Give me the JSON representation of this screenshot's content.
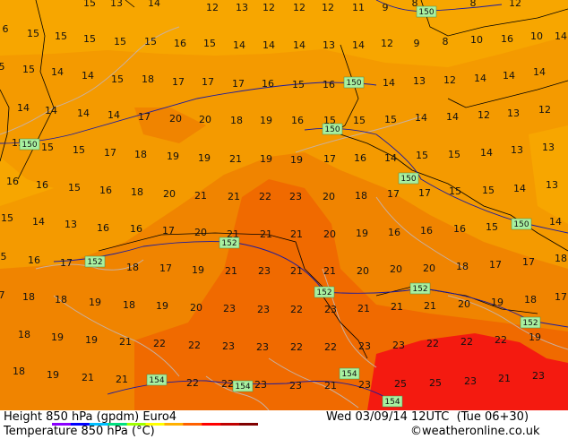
{
  "map": {
    "colors": {
      "t10_14": "#f7a600",
      "t14_18": "#f49a00",
      "t18_22": "#f08400",
      "t22_26": "#f06a00",
      "t26_30": "#f41a10",
      "contour_label_bg": "#a8f0a0",
      "coast": "#c8b0a0",
      "border": "#000000",
      "contour": "#1a1aa0"
    },
    "temperature_values": [
      [
        "13",
        130,
        3
      ],
      [
        "12",
        237,
        8
      ],
      [
        "13",
        270,
        8
      ],
      [
        "12",
        300,
        8
      ],
      [
        "12",
        334,
        8
      ],
      [
        "12",
        366,
        8
      ],
      [
        "11",
        400,
        8
      ],
      [
        "9",
        430,
        8
      ],
      [
        "8",
        463,
        3
      ],
      [
        "8",
        528,
        3
      ],
      [
        "12",
        575,
        3
      ],
      [
        "14",
        172,
        3
      ],
      [
        "15",
        100,
        3
      ],
      [
        "6",
        6,
        32
      ],
      [
        "15",
        37,
        37
      ],
      [
        "15",
        68,
        40
      ],
      [
        "15",
        100,
        43
      ],
      [
        "15",
        134,
        46
      ],
      [
        "15",
        168,
        46
      ],
      [
        "16",
        201,
        48
      ],
      [
        "15",
        234,
        48
      ],
      [
        "14",
        267,
        50
      ],
      [
        "14",
        300,
        50
      ],
      [
        "14",
        334,
        50
      ],
      [
        "13",
        367,
        50
      ],
      [
        "14",
        400,
        50
      ],
      [
        "12",
        432,
        48
      ],
      [
        "9",
        465,
        48
      ],
      [
        "8",
        497,
        46
      ],
      [
        "10",
        532,
        44
      ],
      [
        "16",
        566,
        43
      ],
      [
        "10",
        599,
        40
      ],
      [
        "14",
        626,
        40
      ],
      [
        "5",
        2,
        74
      ],
      [
        "15",
        32,
        77
      ],
      [
        "14",
        64,
        80
      ],
      [
        "14",
        98,
        84
      ],
      [
        "15",
        131,
        88
      ],
      [
        "18",
        165,
        88
      ],
      [
        "17",
        199,
        91
      ],
      [
        "17",
        232,
        91
      ],
      [
        "17",
        266,
        93
      ],
      [
        "16",
        299,
        93
      ],
      [
        "15",
        333,
        94
      ],
      [
        "16",
        367,
        94
      ],
      [
        "14",
        434,
        92
      ],
      [
        "13",
        468,
        90
      ],
      [
        "12",
        502,
        89
      ],
      [
        "14",
        536,
        87
      ],
      [
        "14",
        568,
        84
      ],
      [
        "14",
        602,
        80
      ],
      [
        "14",
        26,
        120
      ],
      [
        "14",
        57,
        123
      ],
      [
        "14",
        93,
        126
      ],
      [
        "14",
        127,
        128
      ],
      [
        "17",
        161,
        130
      ],
      [
        "20",
        196,
        132
      ],
      [
        "20",
        229,
        133
      ],
      [
        "18",
        264,
        134
      ],
      [
        "19",
        297,
        134
      ],
      [
        "16",
        332,
        134
      ],
      [
        "15",
        368,
        134
      ],
      [
        "15",
        401,
        134
      ],
      [
        "15",
        436,
        133
      ],
      [
        "14",
        470,
        131
      ],
      [
        "14",
        505,
        130
      ],
      [
        "12",
        540,
        128
      ],
      [
        "13",
        573,
        126
      ],
      [
        "12",
        608,
        122
      ],
      [
        "15",
        20,
        159
      ],
      [
        "15",
        53,
        164
      ],
      [
        "15",
        88,
        167
      ],
      [
        "17",
        123,
        170
      ],
      [
        "18",
        157,
        172
      ],
      [
        "19",
        193,
        174
      ],
      [
        "19",
        228,
        176
      ],
      [
        "21",
        263,
        177
      ],
      [
        "19",
        297,
        177
      ],
      [
        "19",
        331,
        178
      ],
      [
        "17",
        368,
        177
      ],
      [
        "16",
        402,
        176
      ],
      [
        "14",
        436,
        176
      ],
      [
        "15",
        471,
        173
      ],
      [
        "15",
        507,
        172
      ],
      [
        "14",
        543,
        170
      ],
      [
        "13",
        577,
        167
      ],
      [
        "13",
        612,
        164
      ],
      [
        "16",
        14,
        202
      ],
      [
        "16",
        47,
        206
      ],
      [
        "15",
        83,
        209
      ],
      [
        "16",
        118,
        212
      ],
      [
        "18",
        153,
        214
      ],
      [
        "20",
        189,
        216
      ],
      [
        "21",
        224,
        218
      ],
      [
        "21",
        261,
        219
      ],
      [
        "22",
        296,
        219
      ],
      [
        "23",
        330,
        219
      ],
      [
        "20",
        367,
        219
      ],
      [
        "18",
        403,
        218
      ],
      [
        "17",
        439,
        216
      ],
      [
        "17",
        474,
        215
      ],
      [
        "15",
        508,
        213
      ],
      [
        "15",
        545,
        212
      ],
      [
        "14",
        580,
        210
      ],
      [
        "13",
        616,
        206
      ],
      [
        "15",
        8,
        243
      ],
      [
        "14",
        43,
        247
      ],
      [
        "13",
        79,
        250
      ],
      [
        "16",
        115,
        254
      ],
      [
        "16",
        152,
        255
      ],
      [
        "17",
        188,
        257
      ],
      [
        "20",
        224,
        259
      ],
      [
        "21",
        260,
        261
      ],
      [
        "21",
        297,
        261
      ],
      [
        "21",
        331,
        261
      ],
      [
        "20",
        368,
        261
      ],
      [
        "19",
        404,
        260
      ],
      [
        "16",
        440,
        259
      ],
      [
        "16",
        476,
        257
      ],
      [
        "16",
        513,
        255
      ],
      [
        "15",
        549,
        253
      ],
      [
        "15",
        586,
        250
      ],
      [
        "14",
        620,
        247
      ],
      [
        "5",
        4,
        286
      ],
      [
        "16",
        38,
        290
      ],
      [
        "17",
        74,
        293
      ],
      [
        "18",
        148,
        298
      ],
      [
        "17",
        185,
        299
      ],
      [
        "19",
        221,
        301
      ],
      [
        "21",
        258,
        302
      ],
      [
        "23",
        295,
        302
      ],
      [
        "21",
        331,
        302
      ],
      [
        "21",
        368,
        302
      ],
      [
        "20",
        405,
        302
      ],
      [
        "20",
        442,
        300
      ],
      [
        "20",
        479,
        299
      ],
      [
        "18",
        516,
        297
      ],
      [
        "17",
        553,
        295
      ],
      [
        "17",
        590,
        292
      ],
      [
        "18",
        626,
        288
      ],
      [
        "7",
        2,
        329
      ],
      [
        "18",
        32,
        331
      ],
      [
        "18",
        68,
        334
      ],
      [
        "19",
        106,
        337
      ],
      [
        "18",
        144,
        340
      ],
      [
        "19",
        181,
        341
      ],
      [
        "20",
        219,
        343
      ],
      [
        "23",
        256,
        344
      ],
      [
        "23",
        294,
        345
      ],
      [
        "22",
        331,
        345
      ],
      [
        "23",
        369,
        345
      ],
      [
        "21",
        406,
        344
      ],
      [
        "21",
        443,
        342
      ],
      [
        "21",
        480,
        341
      ],
      [
        "20",
        518,
        339
      ],
      [
        "19",
        555,
        337
      ],
      [
        "18",
        592,
        334
      ],
      [
        "17",
        626,
        331
      ],
      [
        "18",
        27,
        373
      ],
      [
        "19",
        64,
        376
      ],
      [
        "19",
        102,
        379
      ],
      [
        "21",
        140,
        381
      ],
      [
        "22",
        178,
        383
      ],
      [
        "22",
        217,
        385
      ],
      [
        "23",
        255,
        386
      ],
      [
        "23",
        293,
        387
      ],
      [
        "22",
        331,
        387
      ],
      [
        "22",
        369,
        387
      ],
      [
        "23",
        407,
        386
      ],
      [
        "23",
        445,
        385
      ],
      [
        "22",
        483,
        383
      ],
      [
        "22",
        521,
        381
      ],
      [
        "22",
        559,
        379
      ],
      [
        "19",
        597,
        376
      ],
      [
        "18",
        21,
        414
      ],
      [
        "19",
        59,
        418
      ],
      [
        "21",
        98,
        421
      ],
      [
        "21",
        136,
        423
      ],
      [
        "22",
        215,
        427
      ],
      [
        "22",
        254,
        428
      ],
      [
        "23",
        291,
        429
      ],
      [
        "23",
        330,
        430
      ],
      [
        "21",
        369,
        430
      ],
      [
        "23",
        407,
        429
      ],
      [
        "25",
        447,
        428
      ],
      [
        "25",
        486,
        427
      ],
      [
        "23",
        525,
        425
      ],
      [
        "21",
        563,
        422
      ],
      [
        "23",
        601,
        419
      ]
    ],
    "contour_labels": [
      [
        "150",
        476,
        13
      ],
      [
        "150",
        395,
        92
      ],
      [
        "150",
        371,
        144
      ],
      [
        "150",
        33,
        161
      ],
      [
        "150",
        456,
        199
      ],
      [
        "150",
        582,
        250
      ],
      [
        "152",
        256,
        271
      ],
      [
        "152",
        106,
        292
      ],
      [
        "152",
        362,
        326
      ],
      [
        "152",
        469,
        322
      ],
      [
        "152",
        592,
        360
      ],
      [
        "154",
        175,
        424
      ],
      [
        "154",
        390,
        417
      ],
      [
        "154",
        271,
        431
      ],
      [
        "154",
        438,
        448
      ]
    ]
  },
  "footer": {
    "line1_left": "Height 850 hPa (gpdm) Euro4",
    "line1_right": "Wed 03/09/14 12UTC  (Tue 06+30)",
    "line2_left": "Temperature 850 hPa (°C)",
    "line2_right": "©weatheronline.co.uk",
    "scale_colors": [
      "#8a00ff",
      "#0000ff",
      "#00c0ff",
      "#00e080",
      "#a0ff00",
      "#ffff00",
      "#ffb000",
      "#ff6000",
      "#ff0000",
      "#c00000",
      "#800000"
    ]
  }
}
